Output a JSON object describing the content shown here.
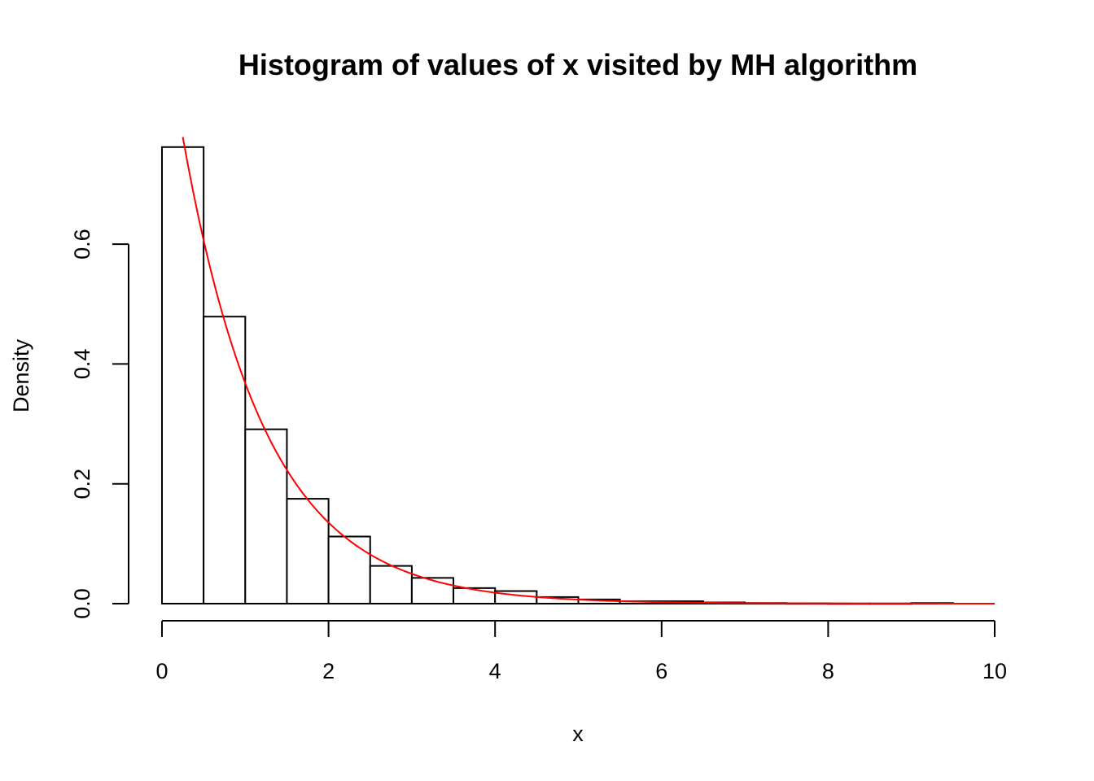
{
  "chart_data": {
    "type": "bar",
    "title": "Histogram of values of x visited by MH algorithm",
    "xlabel": "x",
    "ylabel": "Density",
    "xlim": [
      0,
      10
    ],
    "ylim": [
      0,
      0.76
    ],
    "x_ticks": [
      "0",
      "2",
      "4",
      "6",
      "8",
      "10"
    ],
    "y_ticks": [
      "0.0",
      "0.2",
      "0.4",
      "0.6"
    ],
    "bin_width": 0.5,
    "bin_starts": [
      0,
      0.5,
      1,
      1.5,
      2,
      2.5,
      3,
      3.5,
      4,
      4.5,
      5,
      5.5,
      6,
      6.5,
      7,
      7.5,
      8,
      8.5,
      9
    ],
    "values": [
      0.762,
      0.479,
      0.291,
      0.175,
      0.112,
      0.063,
      0.043,
      0.026,
      0.021,
      0.011,
      0.007,
      0.004,
      0.004,
      0.002,
      0.001,
      0.0005,
      0.0003,
      0.0003,
      0.001
    ],
    "overlay_curve": {
      "function": "exp(-x)",
      "x_range": [
        0.25,
        10
      ],
      "color": "#ff0000"
    },
    "grid": false,
    "legend": "none"
  }
}
